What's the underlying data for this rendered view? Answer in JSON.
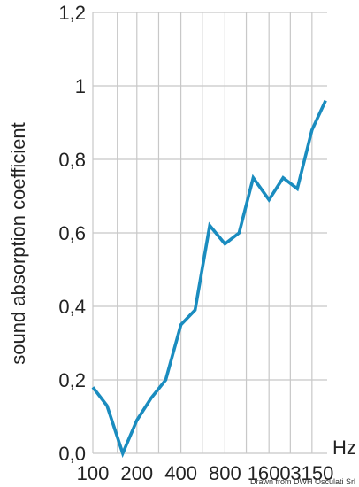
{
  "chart_data": {
    "type": "line",
    "ylabel": "sound absorption coefficient",
    "xlabel": "Hz",
    "x_ticks": [
      "100",
      "200",
      "400",
      "800",
      "1600",
      "3150"
    ],
    "y_ticks": [
      "0,0",
      "0,2",
      "0,4",
      "0,6",
      "0,8",
      "1",
      "1,2"
    ],
    "ylim": [
      0,
      1.2
    ],
    "x_scale": "log",
    "grid": true,
    "line_color": "#1a8cbf",
    "series": [
      {
        "x": [
          100,
          125,
          160,
          200,
          250,
          315,
          400,
          500,
          630,
          800,
          1000,
          1250,
          1600,
          2000,
          2500,
          3150
        ],
        "values": [
          0.18,
          0.13,
          0.0,
          0.09,
          0.15,
          0.2,
          0.35,
          0.39,
          0.62,
          0.57,
          0.6,
          0.75,
          0.69,
          0.75,
          0.72,
          0.88
        ]
      }
    ],
    "end_point": {
      "x": 3900,
      "y": 0.96
    }
  },
  "credit": "Drawn from DWH Osculati Srl"
}
